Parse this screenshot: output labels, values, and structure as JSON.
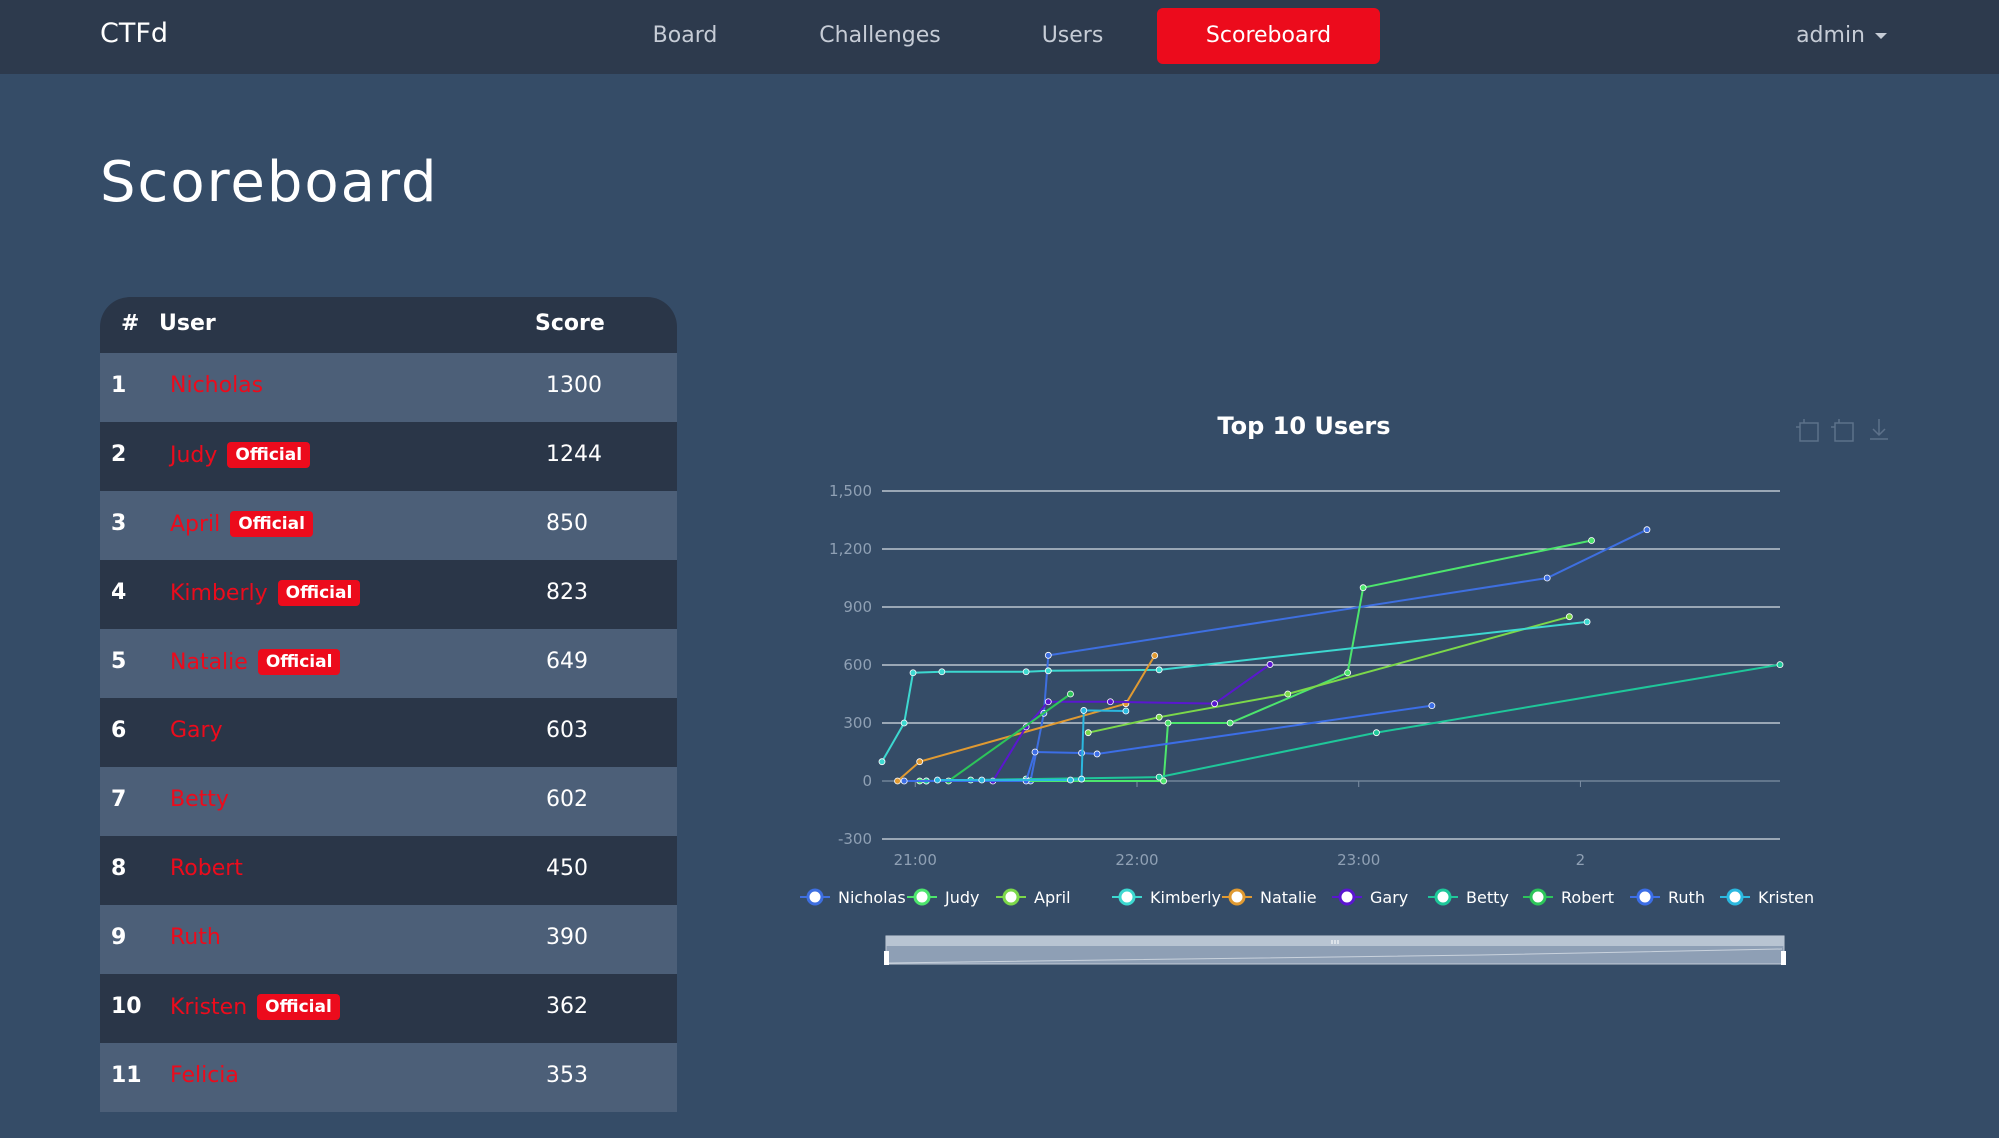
{
  "nav": {
    "brand": "CTFd",
    "links": [
      "Board",
      "Challenges",
      "Users",
      "Scoreboard"
    ],
    "active": "Scoreboard",
    "user": "admin"
  },
  "page": {
    "title": "Scoreboard"
  },
  "table": {
    "headers": {
      "rank": "#",
      "user": "User",
      "score": "Score"
    },
    "rows": [
      {
        "rank": "1",
        "user": "Nicholas",
        "badge": "",
        "score": "1300"
      },
      {
        "rank": "2",
        "user": "Judy",
        "badge": "Official",
        "score": "1244"
      },
      {
        "rank": "3",
        "user": "April",
        "badge": "Official",
        "score": "850"
      },
      {
        "rank": "4",
        "user": "Kimberly",
        "badge": "Official",
        "score": "823"
      },
      {
        "rank": "5",
        "user": "Natalie",
        "badge": "Official",
        "score": "649"
      },
      {
        "rank": "6",
        "user": "Gary",
        "badge": "",
        "score": "603"
      },
      {
        "rank": "7",
        "user": "Betty",
        "badge": "",
        "score": "602"
      },
      {
        "rank": "8",
        "user": "Robert",
        "badge": "",
        "score": "450"
      },
      {
        "rank": "9",
        "user": "Ruth",
        "badge": "",
        "score": "390"
      },
      {
        "rank": "10",
        "user": "Kristen",
        "badge": "Official",
        "score": "362"
      },
      {
        "rank": "11",
        "user": "Felicia",
        "badge": "",
        "score": "353"
      }
    ]
  },
  "chart_data": {
    "type": "line",
    "title": "Top 10 Users",
    "xlabel": "",
    "ylabel": "",
    "ylim": [
      -300,
      1500
    ],
    "yticks": [
      "-300",
      "0",
      "300",
      "600",
      "900",
      "1,200",
      "1,500"
    ],
    "xticks": [
      {
        "label": "21:00",
        "t": 21.0
      },
      {
        "label": "22:00",
        "t": 22.0
      },
      {
        "label": "23:00",
        "t": 23.0
      },
      {
        "label": "2",
        "t": 24.0
      }
    ],
    "xlim": [
      20.85,
      24.9
    ],
    "grid": true,
    "legend": "bottom",
    "series": [
      {
        "name": "Nicholas",
        "color": "#3e6fe0",
        "points": [
          [
            21.52,
            0
          ],
          [
            21.58,
            350
          ],
          [
            21.6,
            650
          ],
          [
            23.85,
            1050
          ],
          [
            24.3,
            1300
          ]
        ]
      },
      {
        "name": "Judy",
        "color": "#4de56d",
        "points": [
          [
            21.02,
            0
          ],
          [
            21.05,
            0
          ],
          [
            22.12,
            0
          ],
          [
            22.14,
            300
          ],
          [
            22.42,
            300
          ],
          [
            22.95,
            560
          ],
          [
            23.02,
            1000
          ],
          [
            24.05,
            1244
          ]
        ]
      },
      {
        "name": "April",
        "color": "#7cd84a",
        "points": [
          [
            21.78,
            250
          ],
          [
            22.1,
            330
          ],
          [
            22.68,
            450
          ],
          [
            23.95,
            850
          ]
        ]
      },
      {
        "name": "Kimberly",
        "color": "#3dd8d0",
        "points": [
          [
            20.85,
            100
          ],
          [
            20.95,
            300
          ],
          [
            20.99,
            560
          ],
          [
            21.12,
            565
          ],
          [
            21.5,
            565
          ],
          [
            21.6,
            570
          ],
          [
            22.1,
            575
          ],
          [
            24.03,
            823
          ]
        ]
      },
      {
        "name": "Natalie",
        "color": "#e09a32",
        "points": [
          [
            20.92,
            0
          ],
          [
            21.02,
            100
          ],
          [
            21.95,
            400
          ],
          [
            22.08,
            649
          ]
        ]
      },
      {
        "name": "Gary",
        "color": "#5a16d0",
        "points": [
          [
            21.35,
            0
          ],
          [
            21.5,
            280
          ],
          [
            21.6,
            410
          ],
          [
            21.88,
            410
          ],
          [
            22.35,
            400
          ],
          [
            22.6,
            603
          ]
        ]
      },
      {
        "name": "Betty",
        "color": "#1fc79a",
        "points": [
          [
            21.05,
            0
          ],
          [
            21.25,
            5
          ],
          [
            21.5,
            10
          ],
          [
            22.1,
            20
          ],
          [
            23.08,
            250
          ],
          [
            24.9,
            602
          ]
        ]
      },
      {
        "name": "Robert",
        "color": "#2dc55a",
        "points": [
          [
            21.15,
            0
          ],
          [
            21.7,
            450
          ]
        ]
      },
      {
        "name": "Ruth",
        "color": "#3c6ee6",
        "points": [
          [
            20.95,
            0
          ],
          [
            21.5,
            0
          ],
          [
            21.54,
            150
          ],
          [
            21.75,
            145
          ],
          [
            21.82,
            140
          ],
          [
            23.33,
            390
          ]
        ]
      },
      {
        "name": "Kristen",
        "color": "#2bb8df",
        "points": [
          [
            21.1,
            5
          ],
          [
            21.3,
            5
          ],
          [
            21.7,
            5
          ],
          [
            21.75,
            10
          ],
          [
            21.76,
            365
          ],
          [
            21.95,
            362
          ]
        ]
      }
    ]
  }
}
